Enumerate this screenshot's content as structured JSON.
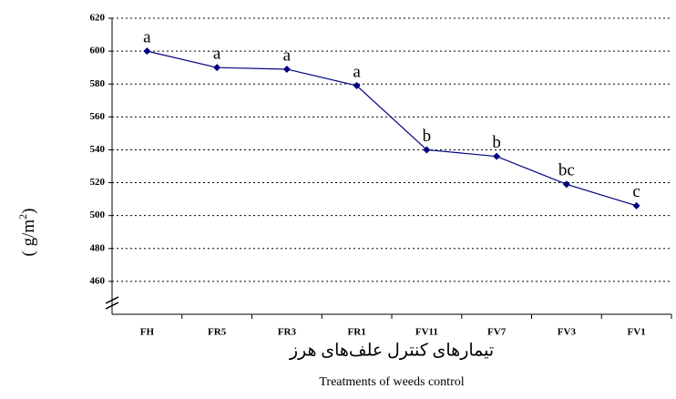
{
  "chart_data": {
    "type": "line",
    "y_label": {
      "before": "( g/m",
      "sup": "2",
      "after": ")"
    },
    "x_label_fa": "تیمارهای کنترل علف‌های هرز",
    "x_label_en": "Treatments of weeds control",
    "categories": [
      "FH",
      "FR5",
      "FR3",
      "FR1",
      "FV11",
      "FV7",
      "FV3",
      "FV1"
    ],
    "series": [
      {
        "color": "#000080",
        "values": [
          600,
          590,
          589,
          579,
          540,
          536,
          519,
          506
        ],
        "letters": [
          "a",
          "a",
          "a",
          "a",
          "b",
          "b",
          "bc",
          "c"
        ]
      }
    ],
    "ylim": [
      440,
      620
    ],
    "yticks": [
      460,
      480,
      500,
      520,
      540,
      560,
      580,
      600,
      620
    ],
    "grid": true
  }
}
